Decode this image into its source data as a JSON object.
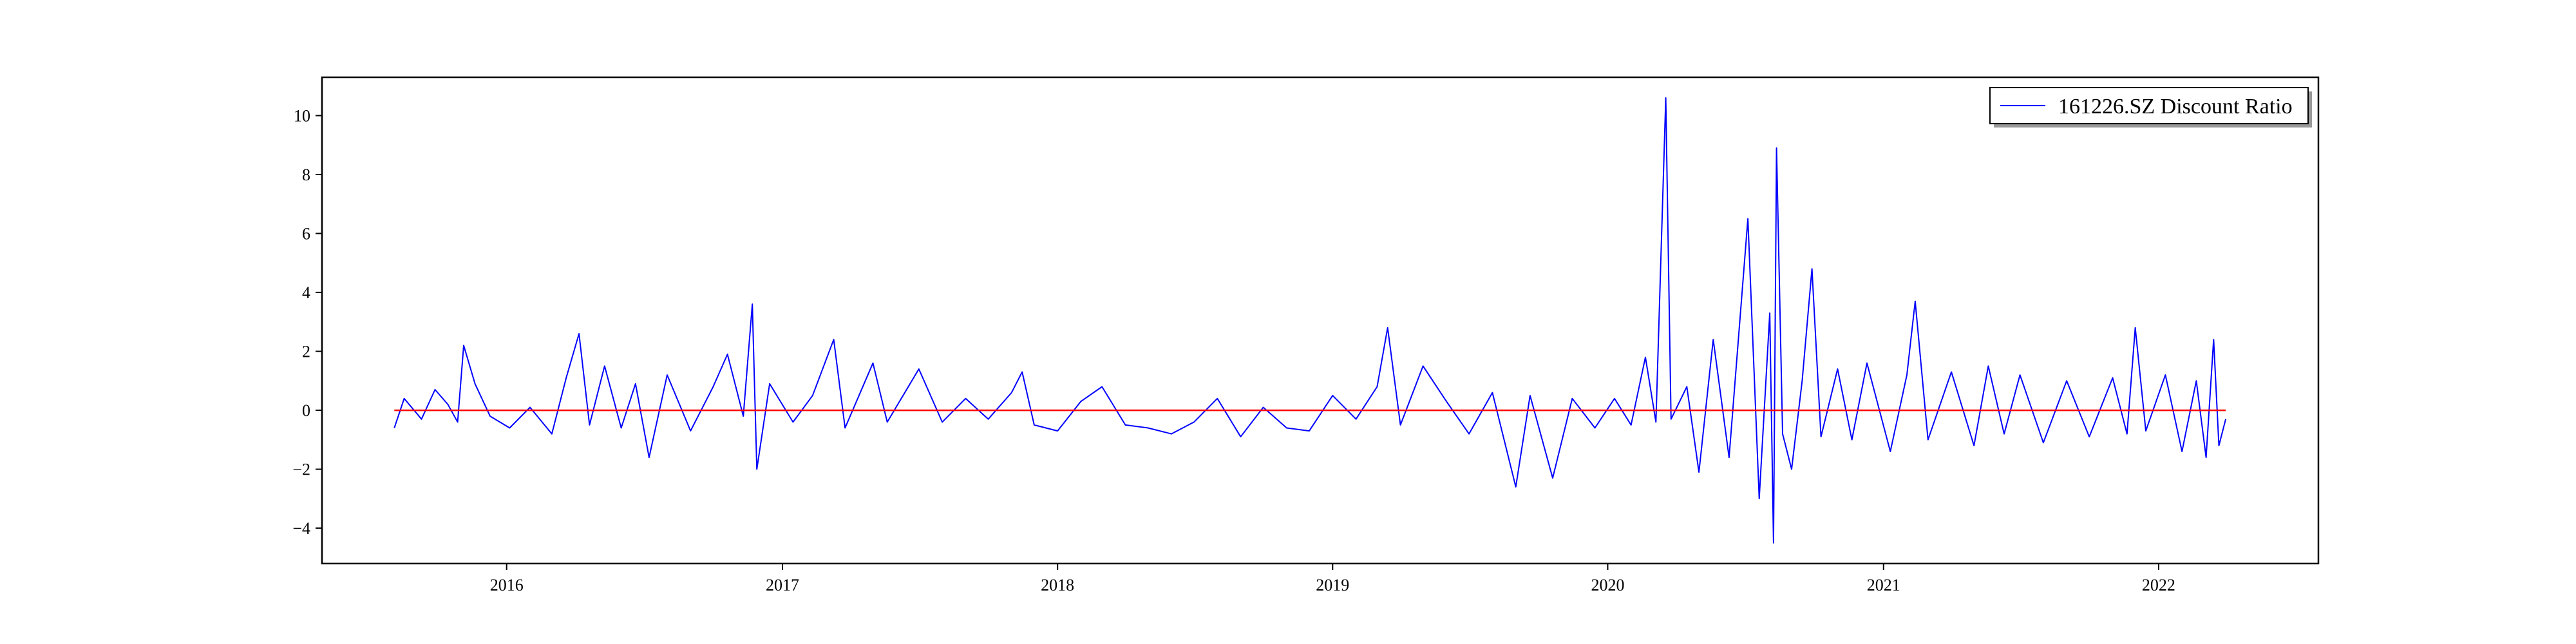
{
  "chart_data": {
    "type": "line",
    "title": "",
    "xlabel": "",
    "ylabel": "",
    "x_axis": {
      "type": "date",
      "range": [
        "2015-05-01",
        "2022-08-01"
      ],
      "ticks": [
        {
          "date": "2016-01-01",
          "label": "2016"
        },
        {
          "date": "2017-01-01",
          "label": "2017"
        },
        {
          "date": "2018-01-01",
          "label": "2018"
        },
        {
          "date": "2019-01-01",
          "label": "2019"
        },
        {
          "date": "2020-01-01",
          "label": "2020"
        },
        {
          "date": "2021-01-01",
          "label": "2021"
        },
        {
          "date": "2022-01-01",
          "label": "2022"
        }
      ]
    },
    "y_axis": {
      "range": [
        -5.2,
        11.3
      ],
      "ticks": [
        {
          "value": -4,
          "label": "−4"
        },
        {
          "value": -2,
          "label": "−2"
        },
        {
          "value": 0,
          "label": "0"
        },
        {
          "value": 2,
          "label": "2"
        },
        {
          "value": 4,
          "label": "4"
        },
        {
          "value": 6,
          "label": "6"
        },
        {
          "value": 8,
          "label": "8"
        },
        {
          "value": 10,
          "label": "10"
        }
      ]
    },
    "grid": false,
    "legend": {
      "placement": "top-right"
    },
    "series": [
      {
        "name": "161226.SZ Discount Ratio",
        "color": "#0000ff",
        "points": [
          {
            "x": "2015-08-05",
            "y": -0.6
          },
          {
            "x": "2015-08-18",
            "y": 0.4
          },
          {
            "x": "2015-09-10",
            "y": -0.3
          },
          {
            "x": "2015-09-28",
            "y": 0.7
          },
          {
            "x": "2015-10-15",
            "y": 0.2
          },
          {
            "x": "2015-10-28",
            "y": -0.4
          },
          {
            "x": "2015-11-05",
            "y": 2.2
          },
          {
            "x": "2015-11-20",
            "y": 0.9
          },
          {
            "x": "2015-12-10",
            "y": -0.2
          },
          {
            "x": "2016-01-05",
            "y": -0.6
          },
          {
            "x": "2016-02-01",
            "y": 0.1
          },
          {
            "x": "2016-03-01",
            "y": -0.8
          },
          {
            "x": "2016-03-20",
            "y": 1.1
          },
          {
            "x": "2016-04-06",
            "y": 2.6
          },
          {
            "x": "2016-04-20",
            "y": -0.5
          },
          {
            "x": "2016-05-10",
            "y": 1.5
          },
          {
            "x": "2016-06-01",
            "y": -0.6
          },
          {
            "x": "2016-06-20",
            "y": 0.9
          },
          {
            "x": "2016-07-08",
            "y": -1.6
          },
          {
            "x": "2016-08-01",
            "y": 1.2
          },
          {
            "x": "2016-09-01",
            "y": -0.7
          },
          {
            "x": "2016-10-01",
            "y": 0.8
          },
          {
            "x": "2016-10-20",
            "y": 1.9
          },
          {
            "x": "2016-11-10",
            "y": -0.2
          },
          {
            "x": "2016-11-22",
            "y": 3.6
          },
          {
            "x": "2016-11-28",
            "y": -2.0
          },
          {
            "x": "2016-12-15",
            "y": 0.9
          },
          {
            "x": "2017-01-15",
            "y": -0.4
          },
          {
            "x": "2017-02-10",
            "y": 0.5
          },
          {
            "x": "2017-03-10",
            "y": 2.4
          },
          {
            "x": "2017-03-25",
            "y": -0.6
          },
          {
            "x": "2017-05-01",
            "y": 1.6
          },
          {
            "x": "2017-05-20",
            "y": -0.4
          },
          {
            "x": "2017-07-01",
            "y": 1.4
          },
          {
            "x": "2017-08-01",
            "y": -0.4
          },
          {
            "x": "2017-09-01",
            "y": 0.4
          },
          {
            "x": "2017-10-01",
            "y": -0.3
          },
          {
            "x": "2017-11-01",
            "y": 0.6
          },
          {
            "x": "2017-11-15",
            "y": 1.3
          },
          {
            "x": "2017-12-01",
            "y": -0.5
          },
          {
            "x": "2018-01-01",
            "y": -0.7
          },
          {
            "x": "2018-02-01",
            "y": 0.3
          },
          {
            "x": "2018-03-01",
            "y": 0.8
          },
          {
            "x": "2018-04-01",
            "y": -0.5
          },
          {
            "x": "2018-05-01",
            "y": -0.6
          },
          {
            "x": "2018-06-01",
            "y": -0.8
          },
          {
            "x": "2018-07-01",
            "y": -0.4
          },
          {
            "x": "2018-08-01",
            "y": 0.4
          },
          {
            "x": "2018-09-01",
            "y": -0.9
          },
          {
            "x": "2018-10-01",
            "y": 0.1
          },
          {
            "x": "2018-11-01",
            "y": -0.6
          },
          {
            "x": "2018-12-01",
            "y": -0.7
          },
          {
            "x": "2019-01-01",
            "y": 0.5
          },
          {
            "x": "2019-02-01",
            "y": -0.3
          },
          {
            "x": "2019-03-01",
            "y": 0.8
          },
          {
            "x": "2019-03-15",
            "y": 2.8
          },
          {
            "x": "2019-04-01",
            "y": -0.5
          },
          {
            "x": "2019-05-01",
            "y": 1.5
          },
          {
            "x": "2019-06-01",
            "y": 0.3
          },
          {
            "x": "2019-07-01",
            "y": -0.8
          },
          {
            "x": "2019-08-01",
            "y": 0.6
          },
          {
            "x": "2019-09-01",
            "y": -2.6
          },
          {
            "x": "2019-09-20",
            "y": 0.5
          },
          {
            "x": "2019-10-20",
            "y": -2.3
          },
          {
            "x": "2019-11-15",
            "y": 0.4
          },
          {
            "x": "2019-12-15",
            "y": -0.6
          },
          {
            "x": "2020-01-10",
            "y": 0.4
          },
          {
            "x": "2020-02-01",
            "y": -0.5
          },
          {
            "x": "2020-02-20",
            "y": 1.8
          },
          {
            "x": "2020-03-05",
            "y": -0.4
          },
          {
            "x": "2020-03-18",
            "y": 10.6
          },
          {
            "x": "2020-03-25",
            "y": -0.3
          },
          {
            "x": "2020-04-15",
            "y": 0.8
          },
          {
            "x": "2020-05-01",
            "y": -2.1
          },
          {
            "x": "2020-05-20",
            "y": 2.4
          },
          {
            "x": "2020-06-10",
            "y": -1.6
          },
          {
            "x": "2020-07-05",
            "y": 6.5
          },
          {
            "x": "2020-07-20",
            "y": -3.0
          },
          {
            "x": "2020-08-03",
            "y": 3.3
          },
          {
            "x": "2020-08-08",
            "y": -4.5
          },
          {
            "x": "2020-08-12",
            "y": 8.9
          },
          {
            "x": "2020-08-20",
            "y": -0.8
          },
          {
            "x": "2020-09-01",
            "y": -2.0
          },
          {
            "x": "2020-09-15",
            "y": 1.0
          },
          {
            "x": "2020-09-28",
            "y": 4.8
          },
          {
            "x": "2020-10-10",
            "y": -0.9
          },
          {
            "x": "2020-11-01",
            "y": 1.4
          },
          {
            "x": "2020-11-20",
            "y": -1.0
          },
          {
            "x": "2020-12-10",
            "y": 1.6
          },
          {
            "x": "2021-01-10",
            "y": -1.4
          },
          {
            "x": "2021-02-01",
            "y": 1.2
          },
          {
            "x": "2021-02-12",
            "y": 3.7
          },
          {
            "x": "2021-03-01",
            "y": -1.0
          },
          {
            "x": "2021-04-01",
            "y": 1.3
          },
          {
            "x": "2021-05-01",
            "y": -1.2
          },
          {
            "x": "2021-05-20",
            "y": 1.5
          },
          {
            "x": "2021-06-10",
            "y": -0.8
          },
          {
            "x": "2021-07-01",
            "y": 1.2
          },
          {
            "x": "2021-08-01",
            "y": -1.1
          },
          {
            "x": "2021-09-01",
            "y": 1.0
          },
          {
            "x": "2021-10-01",
            "y": -0.9
          },
          {
            "x": "2021-11-01",
            "y": 1.1
          },
          {
            "x": "2021-11-20",
            "y": -0.8
          },
          {
            "x": "2021-12-01",
            "y": 2.8
          },
          {
            "x": "2021-12-15",
            "y": -0.7
          },
          {
            "x": "2022-01-10",
            "y": 1.2
          },
          {
            "x": "2022-02-01",
            "y": -1.4
          },
          {
            "x": "2022-02-20",
            "y": 1.0
          },
          {
            "x": "2022-03-05",
            "y": -1.6
          },
          {
            "x": "2022-03-15",
            "y": 2.4
          },
          {
            "x": "2022-03-22",
            "y": -1.2
          },
          {
            "x": "2022-03-31",
            "y": -0.3
          }
        ]
      },
      {
        "color": "#ff0000",
        "points": [
          {
            "x": "2015-08-05",
            "y": 0
          },
          {
            "x": "2022-03-31",
            "y": 0
          }
        ]
      }
    ]
  }
}
